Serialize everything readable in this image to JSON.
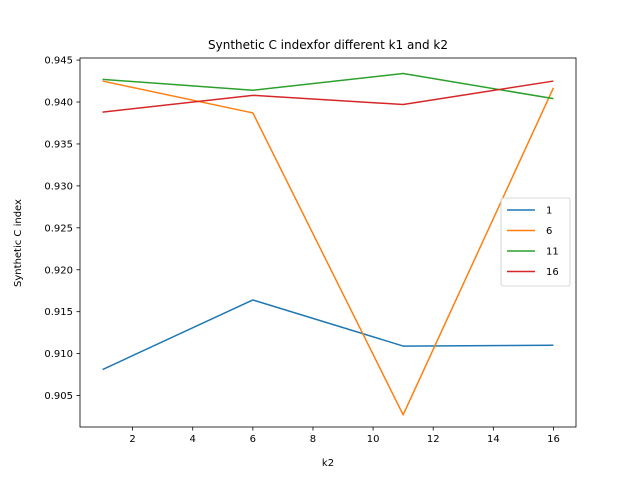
{
  "chart_data": {
    "type": "line",
    "title": "Synthetic C indexfor different k1 and k2",
    "xlabel": "k2",
    "ylabel": "Synthetic C index",
    "x": [
      1,
      6,
      11,
      16
    ],
    "xlim": [
      0.25,
      16.75
    ],
    "ylim": [
      0.90125,
      0.94525
    ],
    "xticks": [
      2,
      4,
      6,
      8,
      10,
      12,
      14,
      16
    ],
    "yticks": [
      0.905,
      0.91,
      0.915,
      0.92,
      0.925,
      0.93,
      0.935,
      0.94,
      0.945
    ],
    "grid": false,
    "legend_position": "center-right",
    "series": [
      {
        "name": "1",
        "color": "#1f77b4",
        "values": [
          0.9081,
          0.9164,
          0.9109,
          0.911
        ]
      },
      {
        "name": "6",
        "color": "#ff7f0e",
        "values": [
          0.9425,
          0.9387,
          0.9027,
          0.9417
        ]
      },
      {
        "name": "11",
        "color": "#2ca02c",
        "values": [
          0.9427,
          0.9414,
          0.9434,
          0.9404
        ]
      },
      {
        "name": "16",
        "color": "#d62728",
        "values": [
          0.9388,
          0.9408,
          0.9397,
          0.9425
        ]
      }
    ]
  }
}
